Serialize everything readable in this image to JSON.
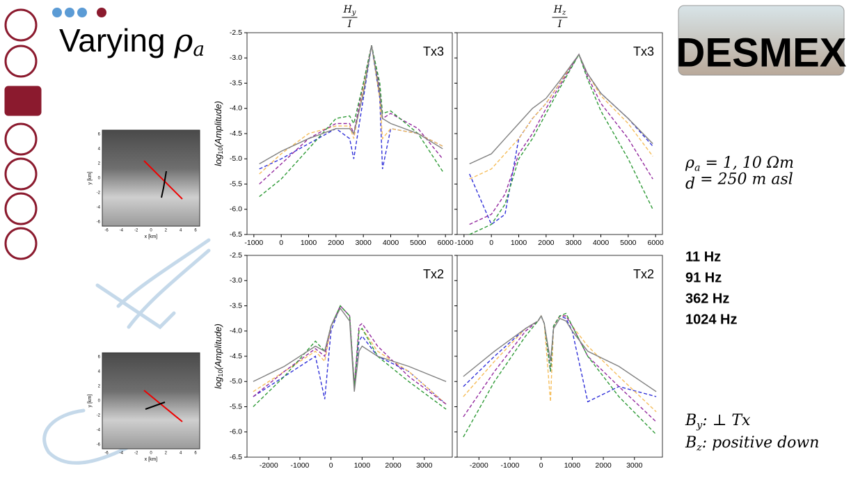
{
  "slide": {
    "title": {
      "text": "Varying ",
      "symbol": "ρ",
      "sub": "a"
    },
    "logo": "DESMEX",
    "params": [
      {
        "symbol": "ρ",
        "sub": "a",
        "rest": " = 1, 10 Ωm"
      },
      {
        "symbol": "d",
        "sub": "",
        "rest": " = 250 m asl"
      }
    ],
    "notes": [
      {
        "symbol": "B",
        "sub": "y",
        "rest": ": ⊥ Tx"
      },
      {
        "symbol": "B",
        "sub": "z",
        "rest": ": positive down"
      }
    ],
    "maps": [
      {
        "xlabel": "x [km]",
        "ylabel": "y [km]",
        "xticks": [
          -6,
          -4,
          -2,
          0,
          2,
          4,
          6
        ],
        "yticks": [
          6,
          4,
          2,
          0,
          -2,
          -4,
          -6
        ]
      },
      {
        "xlabel": "x [km]",
        "ylabel": "y [km]",
        "xticks": [
          -6,
          -4,
          -2,
          0,
          2,
          4,
          6
        ],
        "yticks": [
          6,
          4,
          2,
          0,
          -2,
          -4,
          -6
        ]
      }
    ]
  },
  "chart_data": [
    {
      "type": "line",
      "title": {
        "numerator": "H",
        "subscript": "y",
        "denominator": "I"
      },
      "ylabel": {
        "text": "log",
        "subscript": "10",
        "rest": "(Amplitude)"
      },
      "annotation": "Tx3",
      "ytick_labels": true,
      "xlim": [
        -1250,
        6250
      ],
      "ylim": [
        -6.5,
        -2.5
      ],
      "xticks": [
        -1000,
        0,
        1000,
        2000,
        3000,
        4000,
        5000,
        6000
      ],
      "yticks": [
        -2.5,
        {
          "value": -3,
          "label": "-3.0"
        },
        -3.5,
        {
          "value": -4,
          "label": "-4.0"
        },
        -4.5,
        {
          "value": -5,
          "label": "-5.0"
        },
        -5.5,
        {
          "value": -6,
          "label": "-6.0"
        },
        -6.5
      ],
      "x": [
        -800,
        0,
        1000,
        2000,
        2500,
        2650,
        3000,
        3300,
        3600,
        3700,
        4000,
        5000,
        5900
      ],
      "series": [
        {
          "name": "11 Hz",
          "color": "#2f2fd8",
          "values": [
            -5.2,
            -5.0,
            -4.7,
            -4.4,
            -4.6,
            -5.0,
            -3.8,
            -2.75,
            -3.8,
            -5.2,
            -4.4,
            -4.5,
            -4.75
          ]
        },
        {
          "name": "91 Hz",
          "color": "#f5bd5a",
          "values": [
            -5.3,
            -4.9,
            -4.5,
            -4.35,
            -4.35,
            -4.6,
            -3.6,
            -2.75,
            -3.8,
            -4.6,
            -4.4,
            -4.5,
            -4.75
          ]
        },
        {
          "name": "362 Hz",
          "color": "#93299e",
          "values": [
            -5.5,
            -5.1,
            -4.6,
            -4.3,
            -4.3,
            -4.5,
            -3.5,
            -2.75,
            -3.6,
            -4.2,
            -4.1,
            -4.4,
            -5.0
          ]
        },
        {
          "name": "1024 Hz",
          "color": "#2e9a36",
          "values": [
            -5.75,
            -5.4,
            -4.8,
            -4.2,
            -4.15,
            -4.3,
            -3.5,
            -2.75,
            -3.5,
            -4.1,
            -4.05,
            -4.5,
            -5.25
          ]
        },
        {
          "color": "#808080",
          "values": [
            -5.1,
            -4.85,
            -4.6,
            -4.4,
            -4.4,
            -4.5,
            -3.7,
            -2.75,
            -3.7,
            -4.2,
            -4.3,
            -4.5,
            -4.8
          ]
        }
      ]
    },
    {
      "type": "line",
      "title": {
        "numerator": "H",
        "subscript": "z",
        "denominator": "I"
      },
      "annotation": "Tx3",
      "ytick_labels": false,
      "xlim": [
        -1250,
        6250
      ],
      "ylim": [
        -6.5,
        -2.5
      ],
      "xticks": [
        -1000,
        0,
        1000,
        2000,
        3000,
        4000,
        5000,
        6000
      ],
      "yticks": [
        -2.5,
        -3,
        -3.5,
        -4,
        -4.5,
        -5,
        -5.5,
        -6,
        -6.5
      ],
      "x": [
        -800,
        0,
        500,
        1000,
        1500,
        2000,
        2500,
        3200,
        3500,
        4000,
        5000,
        5900
      ],
      "series": [
        {
          "color": "#2f2fd8",
          "values": [
            -5.3,
            -6.3,
            -6.1,
            -4.6,
            -4.2,
            -3.9,
            -3.5,
            -2.93,
            -3.3,
            -3.7,
            -4.2,
            -4.75
          ]
        },
        {
          "color": "#f5bd5a",
          "values": [
            -5.4,
            -5.2,
            -4.9,
            -4.6,
            -4.2,
            -3.9,
            -3.5,
            -2.93,
            -3.3,
            -3.75,
            -4.3,
            -4.95
          ]
        },
        {
          "color": "#93299e",
          "values": [
            -6.3,
            -6.1,
            -5.7,
            -4.9,
            -4.5,
            -4.0,
            -3.55,
            -2.93,
            -3.35,
            -3.9,
            -4.6,
            -5.4
          ]
        },
        {
          "color": "#2e9a36",
          "values": [
            -6.5,
            -6.3,
            -5.9,
            -5.0,
            -4.6,
            -4.1,
            -3.6,
            -2.93,
            -3.4,
            -4.05,
            -5.0,
            -6.0
          ]
        },
        {
          "color": "#808080",
          "values": [
            -5.1,
            -4.9,
            -4.6,
            -4.3,
            -4.0,
            -3.8,
            -3.45,
            -2.93,
            -3.3,
            -3.7,
            -4.2,
            -4.7
          ]
        }
      ]
    },
    {
      "type": "line",
      "ylabel": {
        "text": "log",
        "subscript": "10",
        "rest": "(Amplitude)"
      },
      "annotation": "Tx2",
      "ytick_labels": true,
      "xlim": [
        -2700,
        3900
      ],
      "ylim": [
        -6.5,
        -2.5
      ],
      "xticks": [
        -2000,
        -1000,
        0,
        1000,
        2000,
        3000
      ],
      "yticks": [
        -2.5,
        {
          "value": -3,
          "label": "-3.0"
        },
        -3.5,
        {
          "value": -4,
          "label": "-4.0"
        },
        -4.5,
        {
          "value": -5,
          "label": "-5.0"
        },
        -5.5,
        {
          "value": -6,
          "label": "-6.0"
        },
        -6.5
      ],
      "x": [
        -2500,
        -1500,
        -500,
        -200,
        0,
        300,
        600,
        750,
        900,
        1000,
        1500,
        2500,
        3700
      ],
      "series": [
        {
          "color": "#2f2fd8",
          "values": [
            -5.3,
            -4.9,
            -4.5,
            -5.35,
            -4.0,
            -3.5,
            -3.7,
            -5.1,
            -4.2,
            -4.1,
            -4.5,
            -4.8,
            -5.45
          ]
        },
        {
          "color": "#f5bd5a",
          "values": [
            -5.2,
            -4.8,
            -4.4,
            -4.6,
            -3.9,
            -3.5,
            -3.7,
            -5.1,
            -4.0,
            -3.95,
            -4.4,
            -4.8,
            -5.45
          ]
        },
        {
          "color": "#93299e",
          "values": [
            -5.3,
            -4.8,
            -4.35,
            -4.5,
            -3.9,
            -3.5,
            -3.7,
            -5.1,
            -3.9,
            -3.85,
            -4.3,
            -4.9,
            -5.45
          ]
        },
        {
          "color": "#2e9a36",
          "values": [
            -5.5,
            -4.9,
            -4.2,
            -4.4,
            -3.9,
            -3.5,
            -3.7,
            -5.1,
            -4.0,
            -3.95,
            -4.5,
            -5.0,
            -5.55
          ]
        },
        {
          "color": "#808080",
          "values": [
            -5.0,
            -4.7,
            -4.3,
            -4.4,
            -3.9,
            -3.55,
            -3.8,
            -5.2,
            -4.4,
            -4.3,
            -4.5,
            -4.7,
            -5.0
          ]
        }
      ]
    },
    {
      "type": "line",
      "annotation": "Tx2",
      "ytick_labels": false,
      "xlim": [
        -2700,
        3900
      ],
      "ylim": [
        -6.5,
        -2.5
      ],
      "xticks": [
        -2000,
        -1000,
        0,
        1000,
        2000,
        3000
      ],
      "yticks": [
        -2.5,
        -3,
        -3.5,
        -4,
        -4.5,
        -5,
        -5.5,
        -6,
        -6.5
      ],
      "x": [
        -2500,
        -1500,
        -500,
        -100,
        0,
        100,
        300,
        400,
        600,
        800,
        1000,
        1500,
        2500,
        3700
      ],
      "series": [
        {
          "color": "#2f2fd8",
          "values": [
            -5.1,
            -4.5,
            -3.95,
            -3.8,
            -3.7,
            -3.85,
            -4.8,
            -3.9,
            -3.7,
            -3.75,
            -4.0,
            -5.4,
            -5.1,
            -5.3
          ]
        },
        {
          "color": "#f5bd5a",
          "values": [
            -5.3,
            -4.6,
            -3.95,
            -3.8,
            -3.7,
            -3.85,
            -5.4,
            -3.9,
            -3.7,
            -3.7,
            -3.9,
            -4.3,
            -4.9,
            -5.6
          ]
        },
        {
          "color": "#93299e",
          "values": [
            -5.7,
            -4.8,
            -4.0,
            -3.8,
            -3.7,
            -3.85,
            -4.8,
            -3.9,
            -3.7,
            -3.7,
            -3.9,
            -4.5,
            -5.1,
            -5.8
          ]
        },
        {
          "color": "#2e9a36",
          "values": [
            -6.1,
            -5.0,
            -4.1,
            -3.8,
            -3.7,
            -3.85,
            -4.8,
            -3.9,
            -3.7,
            -3.65,
            -3.9,
            -4.5,
            -5.3,
            -6.05
          ]
        },
        {
          "color": "#808080",
          "values": [
            -4.9,
            -4.4,
            -3.95,
            -3.8,
            -3.7,
            -3.85,
            -4.6,
            -3.95,
            -3.75,
            -3.8,
            -4.0,
            -4.4,
            -4.7,
            -5.2
          ]
        }
      ]
    }
  ]
}
